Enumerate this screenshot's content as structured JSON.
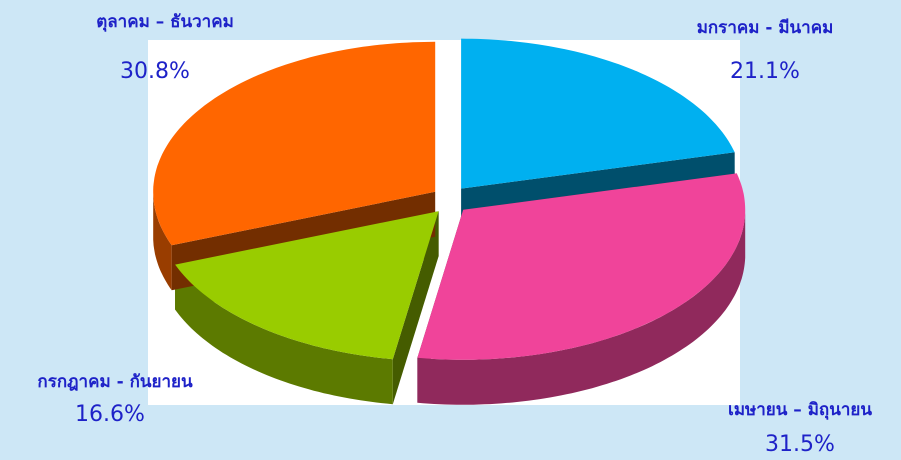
{
  "chart_data": {
    "type": "pie3d",
    "categories": [
      "มกราคม -  มีนาคม",
      "เมษายน – มิถุนายน",
      "กรกฎาคม - กันยายน",
      "ตุลาคม – ธันวาคม"
    ],
    "values": [
      21.1,
      31.5,
      16.6,
      30.8
    ],
    "value_labels": [
      "21.1%",
      "31.5%",
      "16.6%",
      "30.8%"
    ],
    "colors": [
      "#00b0f0",
      "#f0449a",
      "#99cc00",
      "#ff6600"
    ]
  }
}
